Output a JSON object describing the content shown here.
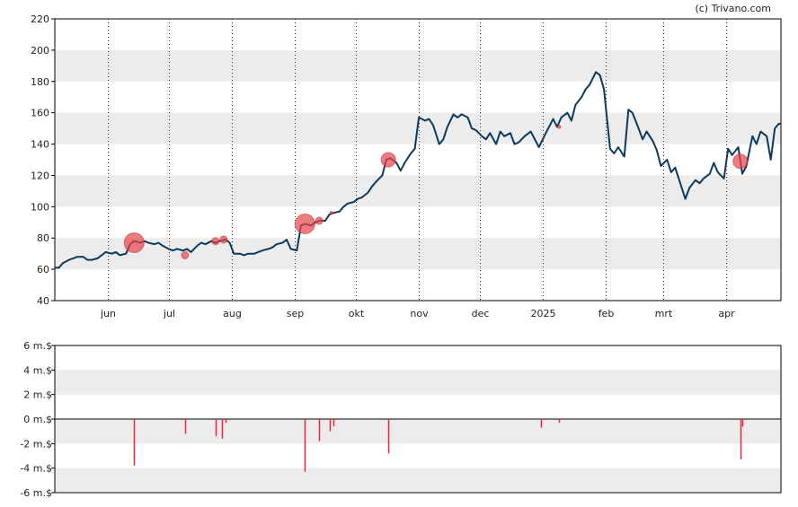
{
  "credit": "(c) Trivano.com",
  "colors": {
    "price_line": "#0d3a5c",
    "trade_marker": "#e8434f",
    "volume_bar": "#e8273a",
    "band": "#ececec",
    "grid": "#333333"
  },
  "chart_data": [
    {
      "type": "line",
      "title": "",
      "xlabel": "",
      "ylabel": "",
      "ylim": [
        40,
        220
      ],
      "yticks": [
        40,
        60,
        80,
        100,
        120,
        140,
        160,
        180,
        200,
        220
      ],
      "grid": true,
      "x_ticks": [
        "jun",
        "jul",
        "aug",
        "sep",
        "okt",
        "nov",
        "dec",
        "2025",
        "feb",
        "mrt",
        "apr"
      ],
      "x_domain": [
        "2024-05-06",
        "2025-04-28"
      ],
      "series": [
        {
          "points": [
            [
              "2024-05-06",
              61
            ],
            [
              "2024-05-08",
              61
            ],
            [
              "2024-05-10",
              64
            ],
            [
              "2024-05-13",
              66
            ],
            [
              "2024-05-15",
              67
            ],
            [
              "2024-05-17",
              68
            ],
            [
              "2024-05-20",
              68
            ],
            [
              "2024-05-22",
              66
            ],
            [
              "2024-05-24",
              66
            ],
            [
              "2024-05-27",
              67
            ],
            [
              "2024-05-29",
              69
            ],
            [
              "2024-05-31",
              71
            ],
            [
              "2024-06-03",
              70
            ],
            [
              "2024-06-05",
              71
            ],
            [
              "2024-06-07",
              69
            ],
            [
              "2024-06-10",
              70
            ],
            [
              "2024-06-12",
              76
            ],
            [
              "2024-06-14",
              78
            ],
            [
              "2024-06-17",
              77
            ],
            [
              "2024-06-19",
              78
            ],
            [
              "2024-06-21",
              77
            ],
            [
              "2024-06-24",
              76
            ],
            [
              "2024-06-26",
              77
            ],
            [
              "2024-06-28",
              75
            ],
            [
              "2024-07-01",
              73
            ],
            [
              "2024-07-03",
              72
            ],
            [
              "2024-07-05",
              73
            ],
            [
              "2024-07-08",
              72
            ],
            [
              "2024-07-10",
              73
            ],
            [
              "2024-07-12",
              71
            ],
            [
              "2024-07-15",
              75
            ],
            [
              "2024-07-17",
              77
            ],
            [
              "2024-07-19",
              76
            ],
            [
              "2024-07-22",
              78
            ],
            [
              "2024-07-24",
              77
            ],
            [
              "2024-07-26",
              78
            ],
            [
              "2024-07-29",
              79
            ],
            [
              "2024-07-31",
              77
            ],
            [
              "2024-08-02",
              70
            ],
            [
              "2024-08-05",
              70
            ],
            [
              "2024-08-07",
              69
            ],
            [
              "2024-08-09",
              70
            ],
            [
              "2024-08-12",
              70
            ],
            [
              "2024-08-14",
              71
            ],
            [
              "2024-08-16",
              72
            ],
            [
              "2024-08-19",
              73
            ],
            [
              "2024-08-21",
              74
            ],
            [
              "2024-08-23",
              76
            ],
            [
              "2024-08-26",
              77
            ],
            [
              "2024-08-28",
              79
            ],
            [
              "2024-08-30",
              73
            ],
            [
              "2024-09-02",
              72
            ],
            [
              "2024-09-04",
              88
            ],
            [
              "2024-09-06",
              89
            ],
            [
              "2024-09-09",
              88
            ],
            [
              "2024-09-11",
              90
            ],
            [
              "2024-09-13",
              91
            ],
            [
              "2024-09-16",
              91
            ],
            [
              "2024-09-18",
              95
            ],
            [
              "2024-09-20",
              96
            ],
            [
              "2024-09-23",
              97
            ],
            [
              "2024-09-25",
              100
            ],
            [
              "2024-09-27",
              102
            ],
            [
              "2024-09-30",
              103
            ],
            [
              "2024-10-02",
              105
            ],
            [
              "2024-10-04",
              106
            ],
            [
              "2024-10-07",
              109
            ],
            [
              "2024-10-09",
              113
            ],
            [
              "2024-10-11",
              116
            ],
            [
              "2024-10-14",
              120
            ],
            [
              "2024-10-16",
              130
            ],
            [
              "2024-10-18",
              131
            ],
            [
              "2024-10-21",
              128
            ],
            [
              "2024-10-23",
              123
            ],
            [
              "2024-10-25",
              128
            ],
            [
              "2024-10-28",
              134
            ],
            [
              "2024-10-30",
              137
            ],
            [
              "2024-11-01",
              157
            ],
            [
              "2024-11-04",
              155
            ],
            [
              "2024-11-06",
              156
            ],
            [
              "2024-11-08",
              152
            ],
            [
              "2024-11-11",
              140
            ],
            [
              "2024-11-13",
              143
            ],
            [
              "2024-11-15",
              151
            ],
            [
              "2024-11-18",
              159
            ],
            [
              "2024-11-20",
              157
            ],
            [
              "2024-11-22",
              159
            ],
            [
              "2024-11-25",
              157
            ],
            [
              "2024-11-27",
              150
            ],
            [
              "2024-11-29",
              149
            ],
            [
              "2024-12-02",
              145
            ],
            [
              "2024-12-04",
              143
            ],
            [
              "2024-12-06",
              147
            ],
            [
              "2024-12-09",
              140
            ],
            [
              "2024-12-11",
              148
            ],
            [
              "2024-12-13",
              145
            ],
            [
              "2024-12-16",
              147
            ],
            [
              "2024-12-18",
              140
            ],
            [
              "2024-12-20",
              141
            ],
            [
              "2024-12-23",
              145
            ],
            [
              "2024-12-26",
              148
            ],
            [
              "2024-12-30",
              138
            ],
            [
              "2025-01-02",
              146
            ],
            [
              "2025-01-06",
              156
            ],
            [
              "2025-01-08",
              151
            ],
            [
              "2025-01-10",
              157
            ],
            [
              "2025-01-13",
              160
            ],
            [
              "2025-01-15",
              155
            ],
            [
              "2025-01-17",
              165
            ],
            [
              "2025-01-20",
              170
            ],
            [
              "2025-01-22",
              175
            ],
            [
              "2025-01-24",
              178
            ],
            [
              "2025-01-27",
              186
            ],
            [
              "2025-01-29",
              184
            ],
            [
              "2025-01-31",
              175
            ],
            [
              "2025-02-03",
              137
            ],
            [
              "2025-02-05",
              134
            ],
            [
              "2025-02-07",
              138
            ],
            [
              "2025-02-10",
              132
            ],
            [
              "2025-02-12",
              162
            ],
            [
              "2025-02-14",
              160
            ],
            [
              "2025-02-17",
              150
            ],
            [
              "2025-02-19",
              143
            ],
            [
              "2025-02-21",
              148
            ],
            [
              "2025-02-24",
              142
            ],
            [
              "2025-02-26",
              136
            ],
            [
              "2025-02-28",
              126
            ],
            [
              "2025-03-03",
              130
            ],
            [
              "2025-03-05",
              122
            ],
            [
              "2025-03-07",
              125
            ],
            [
              "2025-03-10",
              113
            ],
            [
              "2025-03-12",
              105
            ],
            [
              "2025-03-14",
              112
            ],
            [
              "2025-03-17",
              117
            ],
            [
              "2025-03-19",
              115
            ],
            [
              "2025-03-21",
              118
            ],
            [
              "2025-03-24",
              121
            ],
            [
              "2025-03-26",
              128
            ],
            [
              "2025-03-28",
              122
            ],
            [
              "2025-03-31",
              118
            ],
            [
              "2025-04-02",
              137
            ],
            [
              "2025-04-04",
              133
            ],
            [
              "2025-04-07",
              138
            ],
            [
              "2025-04-09",
              121
            ],
            [
              "2025-04-11",
              126
            ],
            [
              "2025-04-14",
              145
            ],
            [
              "2025-04-16",
              140
            ],
            [
              "2025-04-18",
              148
            ],
            [
              "2025-04-21",
              145
            ],
            [
              "2025-04-23",
              130
            ],
            [
              "2025-04-25",
              150
            ],
            [
              "2025-04-27",
              153
            ],
            [
              "2025-04-28",
              153
            ]
          ]
        }
      ],
      "trade_markers": [
        [
          "2024-06-14",
          77,
          "large"
        ],
        [
          "2024-07-09",
          69,
          "small"
        ],
        [
          "2024-07-24",
          78,
          "small"
        ],
        [
          "2024-07-28",
          79,
          "small"
        ],
        [
          "2024-09-06",
          89,
          "large"
        ],
        [
          "2024-09-13",
          91,
          "small"
        ],
        [
          "2024-09-19",
          96,
          "tiny"
        ],
        [
          "2024-10-17",
          130,
          "medium"
        ],
        [
          "2025-01-09",
          151,
          "tiny"
        ],
        [
          "2025-04-08",
          129,
          "medium"
        ]
      ]
    },
    {
      "type": "bar",
      "title": "",
      "xlabel": "",
      "ylabel": "",
      "ylim": [
        -6,
        6
      ],
      "ytick_values": [
        6,
        4,
        2,
        0,
        -2,
        -4,
        -6
      ],
      "ytick_labels": [
        "6 m.$",
        "4 m.$",
        "2 m.$",
        "0 m.$",
        "-2 m.$",
        "-4 m.$",
        "-6 m.$"
      ],
      "grid": true,
      "bars": [
        [
          "2024-06-14",
          -3.8
        ],
        [
          "2024-07-09",
          -1.2
        ],
        [
          "2024-07-24",
          -1.4
        ],
        [
          "2024-07-27",
          -1.6
        ],
        [
          "2024-07-29",
          -0.3
        ],
        [
          "2024-09-06",
          -4.3
        ],
        [
          "2024-09-13",
          -1.8
        ],
        [
          "2024-09-18",
          -1.0
        ],
        [
          "2024-09-20",
          -0.6
        ],
        [
          "2024-10-17",
          -2.8
        ],
        [
          "2024-12-31",
          -0.7
        ],
        [
          "2025-01-09",
          -0.3
        ],
        [
          "2025-04-08",
          -3.3
        ],
        [
          "2025-04-09",
          -0.6
        ]
      ]
    }
  ]
}
